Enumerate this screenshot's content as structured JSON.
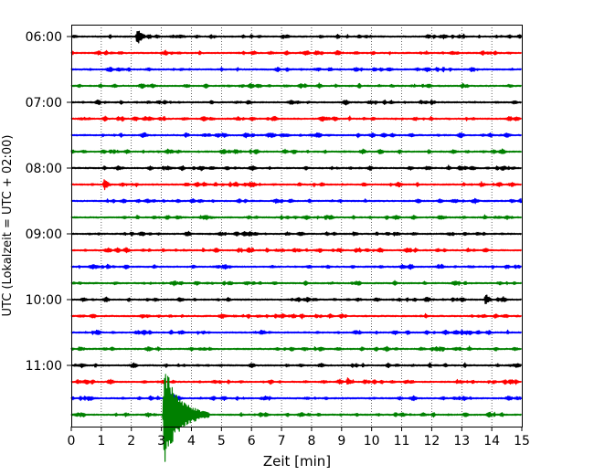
{
  "chart_data": {
    "type": "line",
    "title": "",
    "xlabel": "Zeit  [min]",
    "ylabel": "UTC (Lokalzeit = UTC + 02:00)",
    "xlim": [
      0,
      15
    ],
    "x_ticks": [
      "0",
      "1",
      "2",
      "3",
      "4",
      "5",
      "6",
      "7",
      "8",
      "9",
      "10",
      "11",
      "12",
      "13",
      "14",
      "15"
    ],
    "y_ticks": [
      {
        "label": "06:00",
        "trace": 0
      },
      {
        "label": "07:00",
        "trace": 4
      },
      {
        "label": "08:00",
        "trace": 8
      },
      {
        "label": "09:00",
        "trace": 12
      },
      {
        "label": "10:00",
        "trace": 16
      },
      {
        "label": "11:00",
        "trace": 20
      }
    ],
    "grid": "vertical dotted",
    "trace_colors": [
      "#000000",
      "#ff0000",
      "#0000ff",
      "#008000"
    ],
    "trace_minutes": 15,
    "traces": [
      {
        "start": "06:00",
        "events": [
          {
            "minute": 2.2,
            "amplitude": 10
          }
        ]
      },
      {
        "start": "06:15",
        "events": [
          {
            "minute": 14.1,
            "amplitude": 3
          }
        ]
      },
      {
        "start": "06:30",
        "events": []
      },
      {
        "start": "06:45",
        "events": [
          {
            "minute": 8.8,
            "amplitude": 2
          }
        ]
      },
      {
        "start": "07:00",
        "events": []
      },
      {
        "start": "07:15",
        "events": []
      },
      {
        "start": "07:30",
        "events": [
          {
            "minute": 4.9,
            "amplitude": 3
          }
        ]
      },
      {
        "start": "07:45",
        "events": [
          {
            "minute": 1.3,
            "amplitude": 3
          },
          {
            "minute": 11.9,
            "amplitude": 3
          }
        ]
      },
      {
        "start": "08:00",
        "events": [
          {
            "minute": 5.2,
            "amplitude": 2
          }
        ]
      },
      {
        "start": "08:15",
        "events": [
          {
            "minute": 1.1,
            "amplitude": 7
          }
        ]
      },
      {
        "start": "08:30",
        "events": []
      },
      {
        "start": "08:45",
        "events": [
          {
            "minute": 4.5,
            "amplitude": 2
          },
          {
            "minute": 8.2,
            "amplitude": 2
          },
          {
            "minute": 14.1,
            "amplitude": 2
          }
        ]
      },
      {
        "start": "09:00",
        "events": [
          {
            "minute": 2.0,
            "amplitude": 3
          },
          {
            "minute": 9.4,
            "amplitude": 3
          }
        ]
      },
      {
        "start": "09:15",
        "events": [
          {
            "minute": 6.5,
            "amplitude": 3
          },
          {
            "minute": 13.2,
            "amplitude": 3
          }
        ]
      },
      {
        "start": "09:30",
        "events": [
          {
            "minute": 1.2,
            "amplitude": 4
          }
        ]
      },
      {
        "start": "09:45",
        "events": [
          {
            "minute": 14.0,
            "amplitude": 1
          }
        ]
      },
      {
        "start": "10:00",
        "events": [
          {
            "minute": 13.8,
            "amplitude": 7
          },
          {
            "minute": 12.7,
            "amplitude": 3
          }
        ]
      },
      {
        "start": "10:15",
        "events": []
      },
      {
        "start": "10:30",
        "events": [
          {
            "minute": 2.6,
            "amplitude": 3
          },
          {
            "minute": 13.0,
            "amplitude": 3
          }
        ]
      },
      {
        "start": "10:45",
        "events": [
          {
            "minute": 4.6,
            "amplitude": 2
          }
        ]
      },
      {
        "start": "11:00",
        "events": []
      },
      {
        "start": "11:15",
        "events": [
          {
            "minute": 9.2,
            "amplitude": 5
          },
          {
            "minute": 14.8,
            "amplitude": 3
          }
        ]
      },
      {
        "start": "11:30",
        "events": [
          {
            "minute": 3.2,
            "amplitude": 15
          }
        ]
      },
      {
        "start": "11:45",
        "events": [
          {
            "minute": 3.1,
            "amplitude": 55,
            "coda": 1.5
          }
        ]
      }
    ]
  }
}
